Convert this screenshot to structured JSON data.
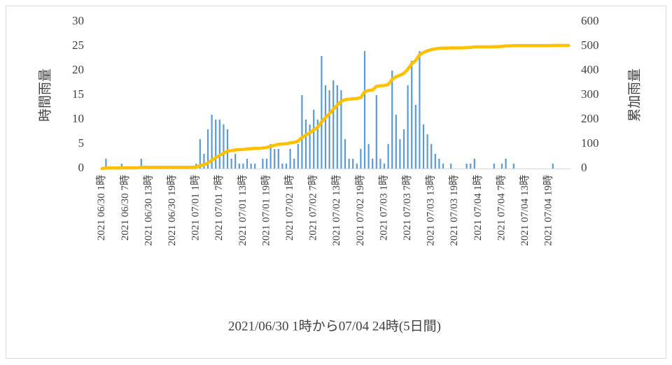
{
  "chart_data": {
    "type": "bar_line",
    "xlabel": "2021/06/30 1時から07/04 24時(5日間)",
    "ylabel": "時間雨量",
    "y2label": "累加雨量",
    "categories": [
      "2021 06/30 1時",
      null,
      null,
      null,
      null,
      null,
      "2021 06/30 7時",
      null,
      null,
      null,
      null,
      null,
      "2021 06/30 13時",
      null,
      null,
      null,
      null,
      null,
      "2021 06/30 19時",
      null,
      null,
      null,
      null,
      null,
      "2021 07/01 1時",
      null,
      null,
      null,
      null,
      null,
      "2021 07/01 7時",
      null,
      null,
      null,
      null,
      null,
      "2021 07/01 13時",
      null,
      null,
      null,
      null,
      null,
      "2021 07/01 19時",
      null,
      null,
      null,
      null,
      null,
      "2021 07/02 1時",
      null,
      null,
      null,
      null,
      null,
      "2021 07/02 7時",
      null,
      null,
      null,
      null,
      null,
      "2021 07/02 13時",
      null,
      null,
      null,
      null,
      null,
      "2021 07/02 19時",
      null,
      null,
      null,
      null,
      null,
      "2021 07/03 1時",
      null,
      null,
      null,
      null,
      null,
      "2021 07/03 7時",
      null,
      null,
      null,
      null,
      null,
      "2021 07/03 13時",
      null,
      null,
      null,
      null,
      null,
      "2021 07/03 19時",
      null,
      null,
      null,
      null,
      null,
      "2021 07/04 1時",
      null,
      null,
      null,
      null,
      null,
      "2021 07/04 7時",
      null,
      null,
      null,
      null,
      null,
      "2021 07/04 13時",
      null,
      null,
      null,
      null,
      null,
      "2021 07/04 19時",
      null,
      null,
      null,
      null,
      null
    ],
    "series": [
      {
        "type": "bar",
        "color": "#5b9bd5",
        "values": [
          0,
          2,
          0,
          0,
          0,
          1,
          0,
          0,
          0,
          0,
          2,
          0,
          0,
          0,
          0,
          0,
          0,
          0,
          0,
          0,
          0,
          0,
          0,
          0,
          1,
          6,
          3,
          8,
          11,
          10,
          10,
          9,
          8,
          2,
          3,
          1,
          1,
          2,
          1,
          1,
          0,
          2,
          2,
          5,
          4,
          4,
          1,
          1,
          4,
          2,
          5,
          15,
          10,
          9,
          12,
          10,
          23,
          17,
          16,
          18,
          17,
          16,
          6,
          2,
          2,
          1,
          4,
          24,
          5,
          2,
          15,
          2,
          1,
          5,
          20,
          11,
          6,
          8,
          17,
          22,
          13,
          24,
          9,
          7,
          5,
          3,
          2,
          1,
          0,
          1,
          0,
          0,
          0,
          1,
          1,
          2,
          0,
          0,
          0,
          0,
          1,
          0,
          1,
          2,
          0,
          1,
          0,
          0,
          0,
          0,
          0,
          0,
          0,
          0,
          0,
          1,
          0,
          0,
          0,
          0
        ]
      },
      {
        "type": "line",
        "axis": "y2",
        "color": "#ffc000",
        "values": [
          0,
          2,
          2,
          2,
          2,
          3,
          3,
          3,
          3,
          3,
          5,
          5,
          5,
          5,
          5,
          5,
          5,
          5,
          5,
          5,
          5,
          5,
          5,
          5,
          6,
          12,
          15,
          23,
          34,
          44,
          54,
          63,
          71,
          73,
          76,
          77,
          78,
          80,
          81,
          82,
          82,
          84,
          86,
          91,
          95,
          99,
          100,
          101,
          105,
          107,
          112,
          127,
          137,
          146,
          158,
          168,
          191,
          208,
          224,
          242,
          259,
          275,
          281,
          283,
          285,
          286,
          290,
          314,
          319,
          321,
          336,
          338,
          339,
          344,
          364,
          375,
          381,
          389,
          406,
          428,
          441,
          465,
          474,
          481,
          486,
          489,
          491,
          492,
          492,
          493,
          493,
          493,
          493,
          494,
          495,
          497,
          497,
          497,
          497,
          497,
          498,
          498,
          499,
          501,
          501,
          502,
          502,
          502,
          502,
          502,
          502,
          502,
          502,
          502,
          502,
          503,
          503,
          503,
          503,
          503
        ]
      }
    ],
    "ylim": [
      0,
      30
    ],
    "yticks": [
      0,
      5,
      10,
      15,
      20,
      25,
      30
    ],
    "y2lim": [
      0,
      600
    ],
    "y2ticks": [
      0,
      100,
      200,
      300,
      400,
      500,
      600
    ],
    "grid": false
  }
}
